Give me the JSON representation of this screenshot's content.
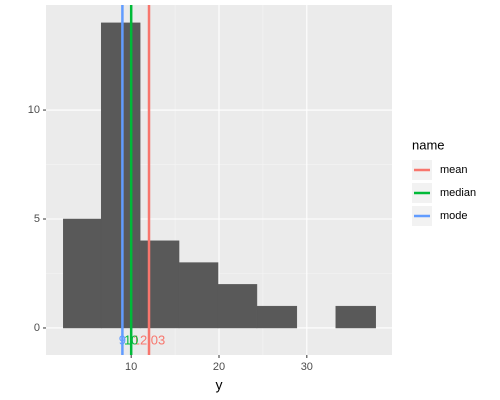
{
  "chart_data": {
    "type": "histogram",
    "bins": [
      2.27,
      6.59,
      11.02,
      15.45,
      19.89,
      24.32,
      28.86,
      33.3,
      37.84
    ],
    "values": [
      5,
      14,
      4,
      3,
      2,
      1,
      0,
      1
    ],
    "color": "#595959",
    "xlim": [
      0.3,
      39.7
    ],
    "ylim": [
      -1.24,
      14.82
    ],
    "xticks": [
      10,
      20,
      30
    ],
    "yticks": [
      0,
      5,
      10
    ],
    "grid": true,
    "xlabel": "y",
    "legend_title": "name",
    "legend_position": "right",
    "series": [
      {
        "name": "mean",
        "color": "#F8766D",
        "values": [
          12.03
        ]
      },
      {
        "name": "median",
        "color": "#00BA38",
        "values": [
          10
        ]
      },
      {
        "name": "mode",
        "color": "#619CFF",
        "values": [
          9
        ]
      }
    ]
  }
}
